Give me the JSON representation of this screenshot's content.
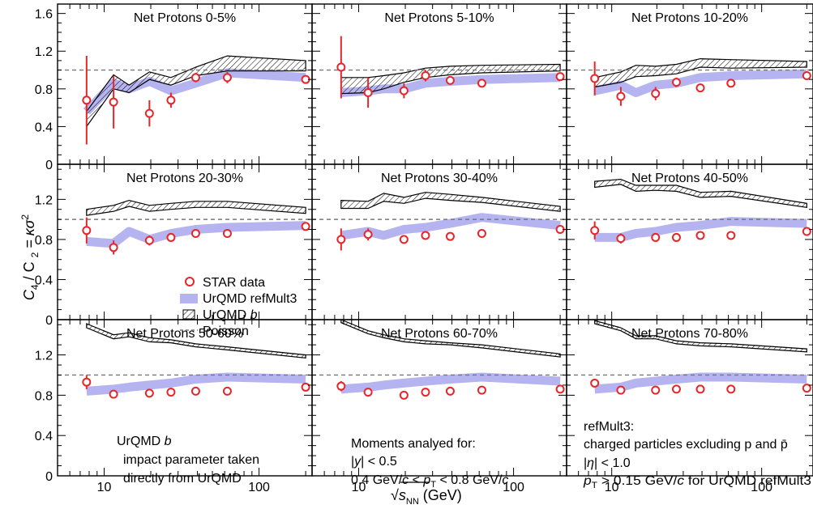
{
  "figure": {
    "ylabel_main": "C",
    "ylabel_sub1": "4",
    "ylabel_mid": " / C",
    "ylabel_sub2": "2",
    "ylabel_eq": " = κσ",
    "ylabel_sup": "2",
    "xlabel_main": "√",
    "xlabel_s": "s",
    "xlabel_sub": "NN",
    "xlabel_unit": "(GeV)",
    "xticks": [
      "10",
      "100"
    ],
    "yticks_top": [
      "0",
      "0.4",
      "0.8",
      "1.2",
      "1.6"
    ],
    "yticks_mid": [
      "0",
      "0.4",
      "0.8",
      "1.2"
    ],
    "yticks_bot": [
      "0",
      "0.4",
      "0.8",
      "1.2"
    ]
  },
  "legend": {
    "star": "STAR data",
    "refmult": "UrQMD refMult3",
    "b_prefix": "UrQMD ",
    "b_italic": "b",
    "poisson": "Poisson"
  },
  "notes": {
    "b1_prefix": "UrQMD ",
    "b1_italic": "b",
    "b2": "impact parameter taken",
    "b3": "directly from UrQMD",
    "m1": "Moments analyed for:",
    "m2_bar": "|",
    "m2_y": "y",
    "m2_rest": "| < 0.5",
    "m3_a": "0.4 GeV/",
    "m3_c": "c",
    "m3_b": " < ",
    "m3_p": "p",
    "m3_T": "T",
    "m3_d": " < 0.8 GeV/",
    "m3_c2": "c",
    "r1": "refMult3:",
    "r2": "charged particles excluding p and p̄",
    "r3_a": "|",
    "r3_eta": "η",
    "r3_b": "| < 1.0",
    "r4_p": "p",
    "r4_T": "T",
    "r4_a": " > 0.15 GeV/",
    "r4_c": "c",
    "r4_b": " for UrQMD refMult3"
  },
  "colors": {
    "star": "#e8262a",
    "refmult": "#b6b4f0",
    "band": "#000000",
    "poisson": "#777777"
  },
  "chart_data": {
    "type": "line",
    "xscale": "log",
    "xlim": [
      5,
      220
    ],
    "ylim_row1": [
      0,
      1.7
    ],
    "ylim_row2_3": [
      0,
      1.55
    ],
    "poisson": 1.0,
    "panels": [
      {
        "title": "Net Protons 0-5%",
        "star": {
          "x": [
            7.7,
            11.5,
            19.6,
            27,
            39,
            62.4,
            200
          ],
          "y": [
            0.68,
            0.66,
            0.54,
            0.68,
            0.92,
            0.92,
            0.9
          ],
          "err": [
            0.47,
            0.28,
            0.14,
            0.08,
            0.05,
            0.06,
            0.02
          ]
        },
        "refmult": {
          "x": [
            7.7,
            11.5,
            14.5,
            19.6,
            27,
            39,
            62.4,
            200
          ],
          "y": [
            0.56,
            0.86,
            0.8,
            0.88,
            0.78,
            0.86,
            0.97,
            0.92
          ]
        },
        "band": {
          "x": [
            7.7,
            11.5,
            14.5,
            19.6,
            27,
            39,
            62.4,
            200
          ],
          "lo": [
            0.4,
            0.8,
            0.76,
            0.9,
            0.84,
            0.94,
            0.99,
            0.99
          ],
          "hi": [
            0.56,
            0.95,
            0.84,
            0.98,
            0.92,
            1.03,
            1.15,
            1.1
          ]
        }
      },
      {
        "title": "Net Protons 5-10%",
        "star": {
          "x": [
            7.7,
            11.5,
            19.6,
            27,
            39,
            62.4,
            200
          ],
          "y": [
            1.03,
            0.76,
            0.78,
            0.94,
            0.89,
            0.86,
            0.93
          ],
          "err": [
            0.33,
            0.16,
            0.08,
            0.06,
            0.04,
            0.04,
            0.02
          ]
        },
        "refmult": {
          "x": [
            7.7,
            11.5,
            14.5,
            19.6,
            27,
            39,
            62.4,
            200
          ],
          "y": [
            0.76,
            0.78,
            0.8,
            0.8,
            0.86,
            0.88,
            0.9,
            0.92
          ]
        },
        "band": {
          "x": [
            7.7,
            11.5,
            14.5,
            19.6,
            27,
            39,
            62.4,
            200
          ],
          "lo": [
            0.75,
            0.76,
            0.8,
            0.87,
            0.92,
            0.95,
            0.97,
            0.99
          ],
          "hi": [
            0.92,
            0.92,
            0.94,
            0.97,
            1.02,
            1.04,
            1.05,
            1.06
          ]
        }
      },
      {
        "title": "Net Protons 10-20%",
        "star": {
          "x": [
            7.7,
            11.5,
            19.6,
            27,
            39,
            62.4,
            200
          ],
          "y": [
            0.91,
            0.72,
            0.75,
            0.87,
            0.81,
            0.86,
            0.94
          ],
          "err": [
            0.18,
            0.1,
            0.07,
            0.05,
            0.03,
            0.03,
            0.02
          ]
        },
        "refmult": {
          "x": [
            7.7,
            11.5,
            14.5,
            19.6,
            27,
            39,
            62.4,
            200
          ],
          "y": [
            0.78,
            0.84,
            0.76,
            0.84,
            0.86,
            0.92,
            0.94,
            0.96
          ]
        },
        "band": {
          "x": [
            7.7,
            11.5,
            14.5,
            19.6,
            27,
            39,
            62.4,
            200
          ],
          "lo": [
            0.82,
            0.87,
            0.93,
            0.94,
            0.96,
            1.03,
            1.02,
            1.03
          ],
          "hi": [
            0.92,
            0.98,
            1.05,
            1.04,
            1.06,
            1.12,
            1.11,
            1.09
          ]
        }
      },
      {
        "title": "Net Protons 20-30%",
        "star": {
          "x": [
            7.7,
            11.5,
            19.6,
            27,
            39,
            62.4,
            200
          ],
          "y": [
            0.89,
            0.72,
            0.79,
            0.82,
            0.86,
            0.86,
            0.93
          ],
          "err": [
            0.13,
            0.07,
            0.05,
            0.04,
            0.03,
            0.03,
            0.02
          ]
        },
        "refmult": {
          "x": [
            7.7,
            11.5,
            14.5,
            19.6,
            27,
            39,
            62.4,
            200
          ],
          "y": [
            0.78,
            0.76,
            0.88,
            0.8,
            0.86,
            0.9,
            0.92,
            0.94
          ]
        },
        "band": {
          "x": [
            7.7,
            11.5,
            14.5,
            19.6,
            27,
            39,
            62.4,
            200
          ],
          "lo": [
            1.04,
            1.08,
            1.13,
            1.08,
            1.1,
            1.12,
            1.12,
            1.06
          ],
          "hi": [
            1.1,
            1.14,
            1.19,
            1.14,
            1.16,
            1.18,
            1.18,
            1.12
          ]
        }
      },
      {
        "title": "Net Protons 30-40%",
        "star": {
          "x": [
            7.7,
            11.5,
            19.6,
            27,
            39,
            62.4,
            200
          ],
          "y": [
            0.8,
            0.85,
            0.8,
            0.84,
            0.83,
            0.86,
            0.9
          ],
          "err": [
            0.11,
            0.06,
            0.04,
            0.03,
            0.02,
            0.02,
            0.02
          ]
        },
        "refmult": {
          "x": [
            7.7,
            11.5,
            14.5,
            19.6,
            27,
            39,
            62.4,
            200
          ],
          "y": [
            0.84,
            0.88,
            0.84,
            0.9,
            0.92,
            0.96,
            1.02,
            0.94
          ]
        },
        "band": {
          "x": [
            7.7,
            11.5,
            14.5,
            19.6,
            27,
            39,
            62.4,
            200
          ],
          "lo": [
            1.11,
            1.11,
            1.18,
            1.16,
            1.21,
            1.19,
            1.17,
            1.08
          ],
          "hi": [
            1.19,
            1.18,
            1.26,
            1.22,
            1.27,
            1.25,
            1.22,
            1.13
          ]
        }
      },
      {
        "title": "Net Protons 40-50%",
        "star": {
          "x": [
            7.7,
            11.5,
            19.6,
            27,
            39,
            62.4,
            200
          ],
          "y": [
            0.89,
            0.81,
            0.82,
            0.82,
            0.84,
            0.84,
            0.88
          ],
          "err": [
            0.09,
            0.05,
            0.03,
            0.03,
            0.02,
            0.02,
            0.02
          ]
        },
        "refmult": {
          "x": [
            7.7,
            11.5,
            14.5,
            19.6,
            27,
            39,
            62.4,
            200
          ],
          "y": [
            0.82,
            0.82,
            0.86,
            0.88,
            0.92,
            0.94,
            0.98,
            0.96
          ]
        },
        "band": {
          "x": [
            7.7,
            11.5,
            14.5,
            19.6,
            27,
            39,
            62.4,
            200
          ],
          "lo": [
            1.32,
            1.35,
            1.28,
            1.29,
            1.28,
            1.22,
            1.23,
            1.12
          ],
          "hi": [
            1.38,
            1.4,
            1.34,
            1.34,
            1.34,
            1.27,
            1.28,
            1.16
          ]
        }
      },
      {
        "title": "Net Protons 50-60%",
        "star": {
          "x": [
            7.7,
            11.5,
            19.6,
            27,
            39,
            62.4,
            200
          ],
          "y": [
            0.93,
            0.81,
            0.82,
            0.83,
            0.84,
            0.84,
            0.88
          ],
          "err": [
            0.07,
            0.04,
            0.03,
            0.02,
            0.02,
            0.02,
            0.02
          ]
        },
        "refmult": {
          "x": [
            7.7,
            11.5,
            14.5,
            19.6,
            27,
            39,
            62.4,
            200
          ],
          "y": [
            0.84,
            0.86,
            0.88,
            0.9,
            0.92,
            0.96,
            0.98,
            0.96
          ]
        },
        "band": {
          "x": [
            7.7,
            11.5,
            14.5,
            19.6,
            27,
            39,
            62.4,
            200
          ],
          "lo": [
            1.47,
            1.36,
            1.38,
            1.33,
            1.32,
            1.28,
            1.25,
            1.17
          ],
          "hi": [
            1.51,
            1.4,
            1.42,
            1.37,
            1.35,
            1.31,
            1.28,
            1.2
          ]
        }
      },
      {
        "title": "Net Protons 60-70%",
        "star": {
          "x": [
            7.7,
            11.5,
            19.6,
            27,
            39,
            62.4,
            200
          ],
          "y": [
            0.89,
            0.83,
            0.8,
            0.83,
            0.84,
            0.85,
            0.86
          ],
          "err": [
            0.05,
            0.03,
            0.03,
            0.02,
            0.02,
            0.02,
            0.02
          ]
        },
        "refmult": {
          "x": [
            7.7,
            11.5,
            14.5,
            19.6,
            27,
            39,
            62.4,
            200
          ],
          "y": [
            0.86,
            0.88,
            0.9,
            0.92,
            0.94,
            0.96,
            0.98,
            0.94
          ]
        },
        "band": {
          "x": [
            7.7,
            11.5,
            14.5,
            19.6,
            27,
            39,
            62.4,
            200
          ],
          "lo": [
            1.52,
            1.41,
            1.37,
            1.33,
            1.31,
            1.3,
            1.27,
            1.18
          ],
          "hi": [
            1.55,
            1.44,
            1.4,
            1.36,
            1.34,
            1.32,
            1.3,
            1.21
          ]
        }
      },
      {
        "title": "Net Protons 70-80%",
        "star": {
          "x": [
            7.7,
            11.5,
            19.6,
            27,
            39,
            62.4,
            200
          ],
          "y": [
            0.92,
            0.85,
            0.85,
            0.86,
            0.86,
            0.86,
            0.87
          ],
          "err": [
            0.04,
            0.03,
            0.02,
            0.02,
            0.02,
            0.02,
            0.02
          ]
        },
        "refmult": {
          "x": [
            7.7,
            11.5,
            14.5,
            19.6,
            27,
            39,
            62.4,
            200
          ],
          "y": [
            0.86,
            0.88,
            0.92,
            0.94,
            0.96,
            0.98,
            0.98,
            0.96
          ]
        },
        "band": {
          "x": [
            7.7,
            11.5,
            14.5,
            19.6,
            27,
            39,
            62.4,
            200
          ],
          "lo": [
            1.51,
            1.44,
            1.36,
            1.36,
            1.31,
            1.29,
            1.28,
            1.23
          ],
          "hi": [
            1.54,
            1.47,
            1.39,
            1.39,
            1.34,
            1.32,
            1.31,
            1.26
          ]
        }
      }
    ]
  }
}
